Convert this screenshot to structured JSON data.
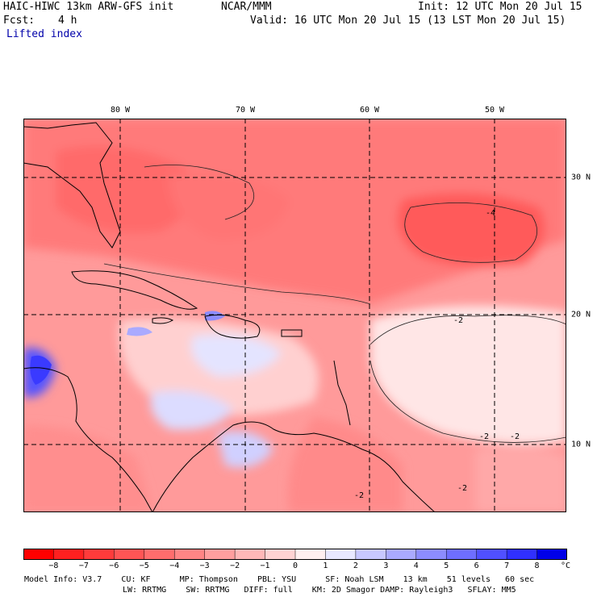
{
  "header": {
    "model_title": "HAIC-HIWC 13km ARW-GFS init",
    "center": "NCAR/MMM",
    "init": "Init: 12 UTC Mon 20 Jul 15",
    "fcst_label": "Fcst:",
    "fcst_value": "4 h",
    "valid": "Valid: 16 UTC Mon 20 Jul 15 (13 LST Mon 20 Jul 15)",
    "field": "Lifted index"
  },
  "map": {
    "lon_labels": [
      "80 W",
      "70 W",
      "60 W",
      "50 W"
    ],
    "lat_labels": [
      "30 N",
      "20 N",
      "10 N"
    ],
    "contour_labels": [
      "-4",
      "-2",
      "-2",
      "-2",
      "-2",
      "-2"
    ]
  },
  "colorbar": {
    "tick_labels": [
      "−8",
      "−7",
      "−6",
      "−5",
      "−4",
      "−3",
      "−2",
      "−1",
      "0",
      "1",
      "2",
      "3",
      "4",
      "5",
      "6",
      "7",
      "8"
    ],
    "unit": "°C",
    "colors": [
      "#ff0000",
      "#ff2020",
      "#ff3b3b",
      "#ff5555",
      "#ff6d6d",
      "#ff8585",
      "#ff9f9f",
      "#ffb8b8",
      "#ffd3d3",
      "#fff0f0",
      "#e8e8ff",
      "#c8c8ff",
      "#aaaaff",
      "#8c8cff",
      "#6e6eff",
      "#5050ff",
      "#3030ff",
      "#0000e8"
    ]
  },
  "footer": {
    "line1": "Model Info: V3.7    CU: KF      MP: Thompson    PBL: YSU      SF: Noah LSM    13 km    51 levels   60 sec",
    "line2": "LW: RRTMG    SW: RRTMG   DIFF: full    KM: 2D Smagor DAMP: Rayleigh3   SFLAY: MM5"
  }
}
